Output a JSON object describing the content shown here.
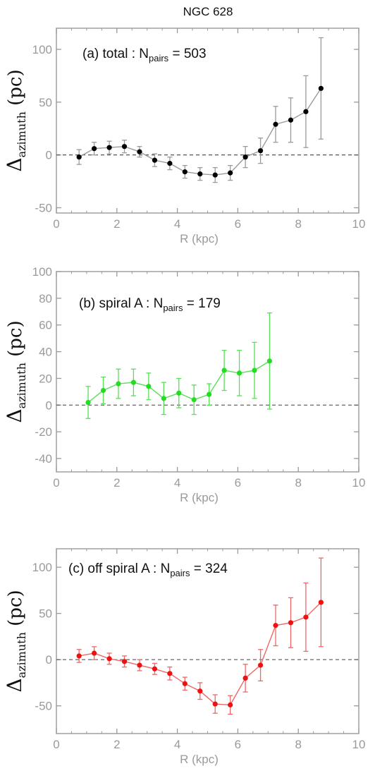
{
  "figure_title": "NGC 628",
  "chart_data": [
    {
      "type": "line",
      "panel_label": "(a) total : N",
      "n_subscript": "pairs",
      "n_value": " = 503",
      "xlabel": "R (kpc)",
      "ylabel_main": "Δ",
      "ylabel_sub": "azimuth",
      "ylabel_unit": " (pc)",
      "xlim": [
        0,
        10
      ],
      "ylim": [
        -55,
        120
      ],
      "xticks": [
        0,
        2,
        4,
        6,
        8,
        10
      ],
      "yticks": [
        -50,
        0,
        50,
        100
      ],
      "zero_line": true,
      "color": "#000000",
      "line_color": "#9a9a9a",
      "x": [
        0.75,
        1.25,
        1.75,
        2.25,
        2.75,
        3.25,
        3.75,
        4.25,
        4.75,
        5.25,
        5.75,
        6.25,
        6.75,
        7.25,
        7.75,
        8.25,
        8.75
      ],
      "y": [
        -2,
        6,
        7,
        8,
        3,
        -5,
        -8,
        -16,
        -18,
        -19,
        -17,
        -2,
        4,
        29,
        33,
        41,
        63
      ],
      "err": [
        7,
        6,
        6,
        6,
        5,
        6,
        6,
        6,
        6,
        7,
        7,
        10,
        12,
        17,
        21,
        34,
        48
      ]
    },
    {
      "type": "line",
      "panel_label": "(b) spiral A : N",
      "n_subscript": "pairs",
      "n_value": " = 179",
      "xlabel": "R (kpc)",
      "ylabel_main": "Δ",
      "ylabel_sub": "azimuth",
      "ylabel_unit": " (pc)",
      "xlim": [
        0,
        10
      ],
      "ylim": [
        -50,
        100
      ],
      "xticks": [
        0,
        2,
        4,
        6,
        8,
        10
      ],
      "yticks": [
        -40,
        -20,
        0,
        20,
        40,
        60,
        80,
        100
      ],
      "zero_line": true,
      "color": "#22dd22",
      "line_color": "#55e055",
      "x": [
        1.05,
        1.55,
        2.05,
        2.55,
        3.05,
        3.55,
        4.05,
        4.55,
        5.05,
        5.55,
        6.05,
        6.55,
        7.05
      ],
      "y": [
        2,
        11,
        16,
        17,
        14,
        5,
        9,
        4,
        8,
        26,
        24,
        26,
        33
      ],
      "err": [
        12,
        10,
        11,
        10,
        10,
        12,
        11,
        11,
        8,
        15,
        17,
        21,
        36
      ]
    },
    {
      "type": "line",
      "panel_label": "(c) off spiral A : N",
      "n_subscript": "pairs",
      "n_value": " = 324",
      "xlabel": "R (kpc)",
      "ylabel_main": "Δ",
      "ylabel_sub": "azimuth",
      "ylabel_unit": " (pc)",
      "xlim": [
        0,
        10
      ],
      "ylim": [
        -80,
        120
      ],
      "xticks": [
        0,
        2,
        4,
        6,
        8,
        10
      ],
      "yticks": [
        -50,
        0,
        50,
        100
      ],
      "zero_line": true,
      "color": "#ee1111",
      "line_color": "#ee6666",
      "x": [
        0.75,
        1.25,
        1.75,
        2.25,
        2.75,
        3.25,
        3.75,
        4.25,
        4.75,
        5.25,
        5.75,
        6.25,
        6.75,
        7.25,
        7.75,
        8.25,
        8.75
      ],
      "y": [
        4,
        7,
        1,
        -2,
        -6,
        -10,
        -15,
        -26,
        -34,
        -48,
        -49,
        -20,
        -6,
        37,
        40,
        46,
        62
      ],
      "err": [
        7,
        7,
        6,
        6,
        6,
        6,
        7,
        7,
        9,
        10,
        10,
        15,
        17,
        22,
        27,
        37,
        48
      ]
    }
  ]
}
